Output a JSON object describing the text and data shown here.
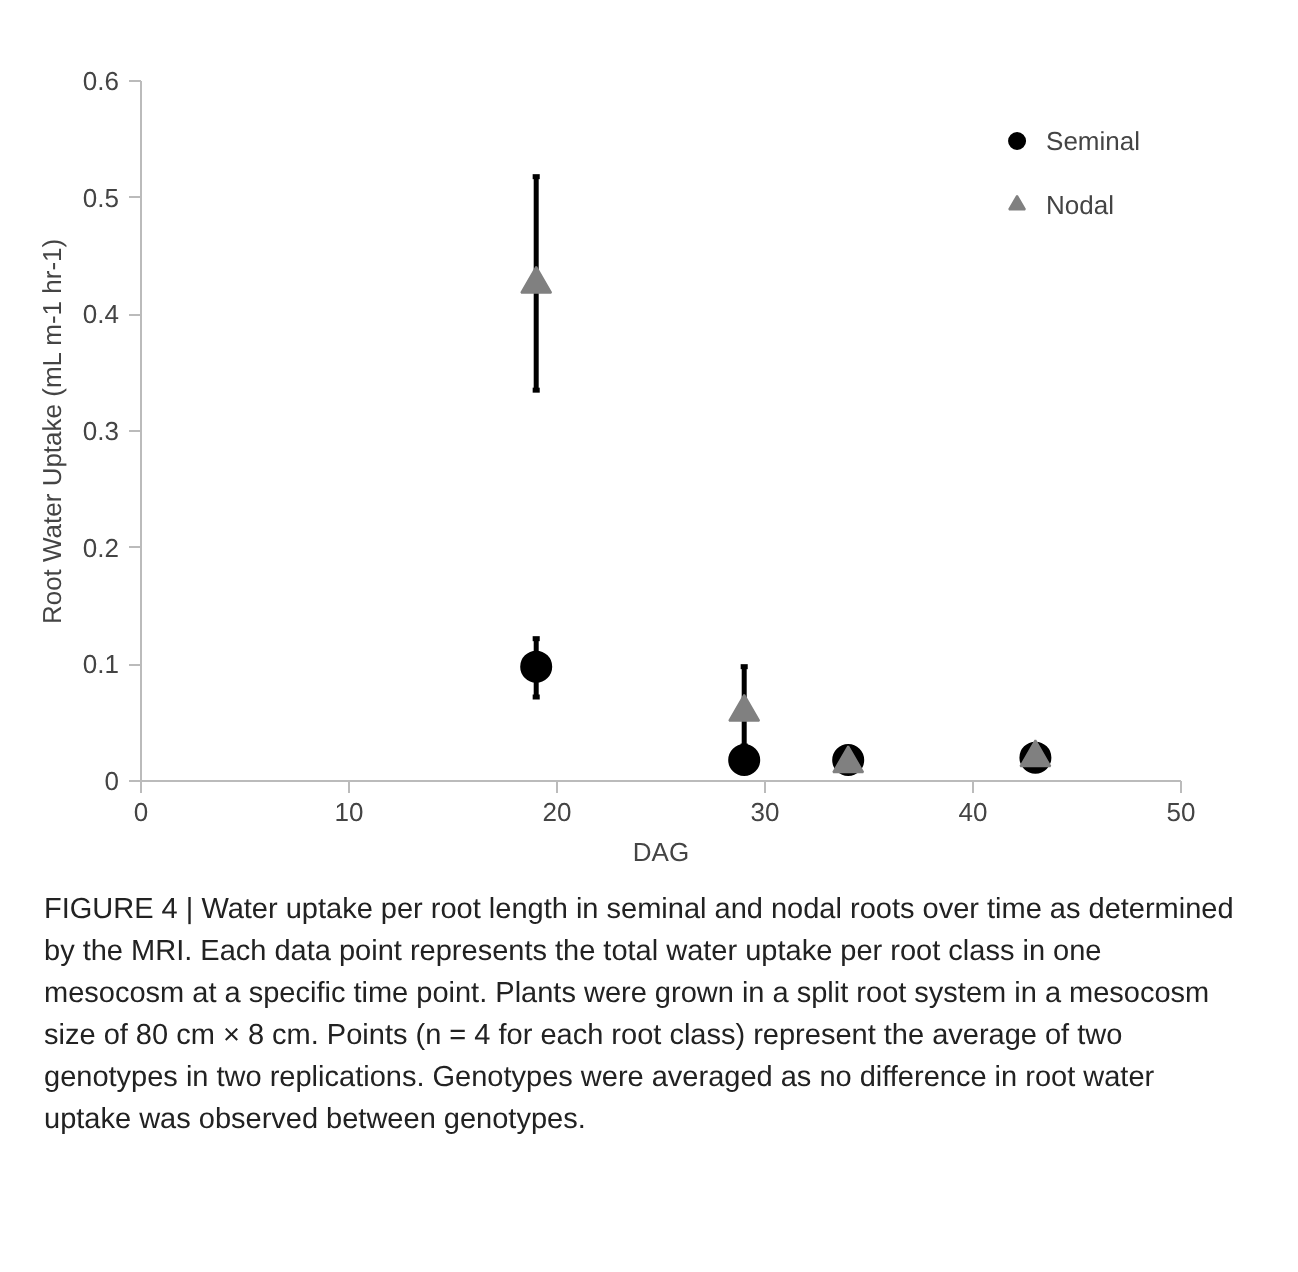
{
  "chart_data": {
    "type": "scatter",
    "xlabel": "DAG",
    "ylabel": "Root Water Uptake (mL m-1 hr-1)",
    "xlim": [
      0,
      50
    ],
    "xticks": [
      0,
      10,
      20,
      30,
      40,
      50
    ],
    "ylim": [
      0,
      0.6
    ],
    "yticks": [
      0,
      0.1,
      0.2,
      0.3,
      0.4,
      0.5,
      0.6
    ],
    "grid": false,
    "legend": "top right",
    "series": [
      {
        "name": "Seminal",
        "color": "#000000",
        "marker": "circle",
        "x": [
          19,
          29,
          34,
          43
        ],
        "values": [
          0.098,
          0.018,
          0.018,
          0.02
        ],
        "errors": [
          [
            0.072,
            0.122
          ],
          null,
          null,
          null
        ]
      },
      {
        "name": "Nodal",
        "color": "#808080",
        "marker": "triangle",
        "x": [
          19,
          29,
          34,
          43
        ],
        "values": [
          0.426,
          0.059,
          0.015,
          0.02
        ],
        "errors": [
          [
            0.335,
            0.518
          ],
          [
            0.03,
            0.098
          ],
          null,
          null
        ]
      }
    ],
    "annotations": [
      "FIGURE 4 | Water uptake per root length in seminal and nodal roots over time as determined by the MRI. Each data point represents the total water uptake per root class in one mesocosm at a specific time point. Plants were grown in a split root system in a mesocosm size of 80 cm × 8 cm. Points (n = 4 for each root class) represent the average of two genotypes in two replications. Genotypes were averaged as no difference in root water uptake was observed between genotypes."
    ]
  }
}
